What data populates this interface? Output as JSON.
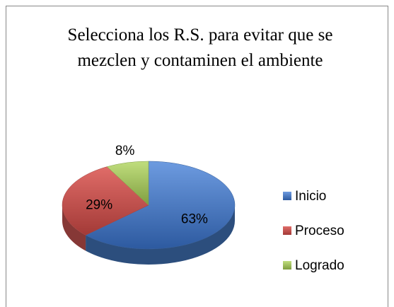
{
  "chart_data": {
    "type": "pie",
    "title": "Selecciona los R.S. para evitar que se mezclen y contaminen el ambiente",
    "categories": [
      "Inicio",
      "Proceso",
      "Logrado"
    ],
    "values": [
      63,
      29,
      8
    ],
    "value_labels": [
      "63%",
      "29%",
      "8%"
    ],
    "colors": [
      "#3f6fb3",
      "#c0504d",
      "#9bbb59"
    ],
    "legend": "right"
  }
}
